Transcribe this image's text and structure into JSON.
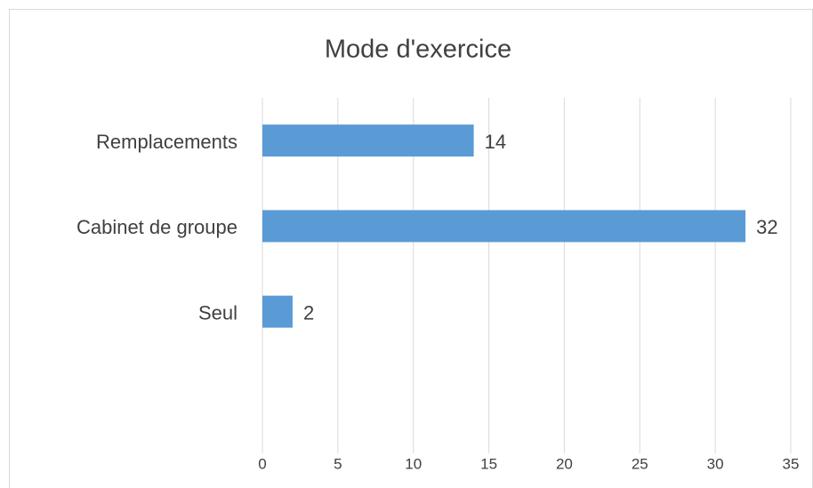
{
  "chart_data": {
    "type": "bar",
    "orientation": "horizontal",
    "title": "Mode d'exercice",
    "categories": [
      "Remplacements",
      "Cabinet de groupe",
      "Seul",
      null
    ],
    "values": [
      14,
      32,
      2,
      null
    ],
    "color": "#5b9bd5",
    "xlim": [
      0,
      35
    ],
    "xticks": [
      0,
      5,
      10,
      15,
      20,
      25,
      30,
      35
    ],
    "grid": true
  }
}
